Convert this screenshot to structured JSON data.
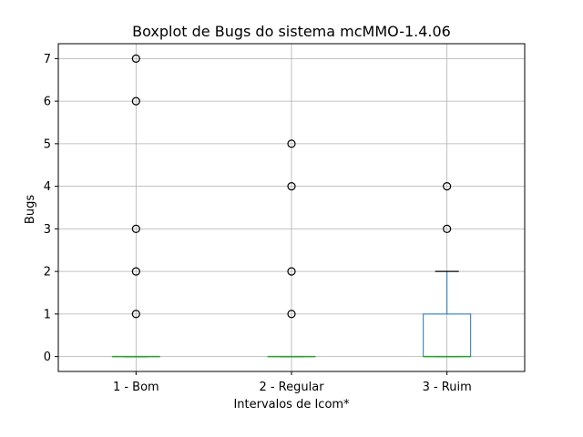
{
  "chart_data": {
    "type": "boxplot",
    "title": "Boxplot de Bugs do sistema mcMMO-1.4.06",
    "xlabel": "Intervalos de Icom*",
    "ylabel": "Bugs",
    "categories": [
      "1 - Bom",
      "2 - Regular",
      "3 - Ruim"
    ],
    "ylim": [
      -0.35,
      7.35
    ],
    "yticks": [
      0,
      1,
      2,
      3,
      4,
      5,
      6,
      7
    ],
    "grid": true,
    "legend": "none",
    "boxes": [
      {
        "category": "1 - Bom",
        "q1": 0,
        "median": 0,
        "q3": 0,
        "whisker_low": 0,
        "whisker_high": 0,
        "outliers": [
          1,
          2,
          3,
          6,
          7
        ]
      },
      {
        "category": "2 - Regular",
        "q1": 0,
        "median": 0,
        "q3": 0,
        "whisker_low": 0,
        "whisker_high": 0,
        "outliers": [
          1,
          2,
          4,
          5
        ]
      },
      {
        "category": "3 - Ruim",
        "q1": 0,
        "median": 0,
        "q3": 1,
        "whisker_low": 0,
        "whisker_high": 2,
        "outliers": [
          3,
          4
        ]
      }
    ],
    "colors": {
      "box": "#1f77b4",
      "median": "#2ca02c",
      "whisker": "#1f77b4",
      "cap": "#000000",
      "outlier": "#000000",
      "grid": "#b0b0b0"
    }
  }
}
